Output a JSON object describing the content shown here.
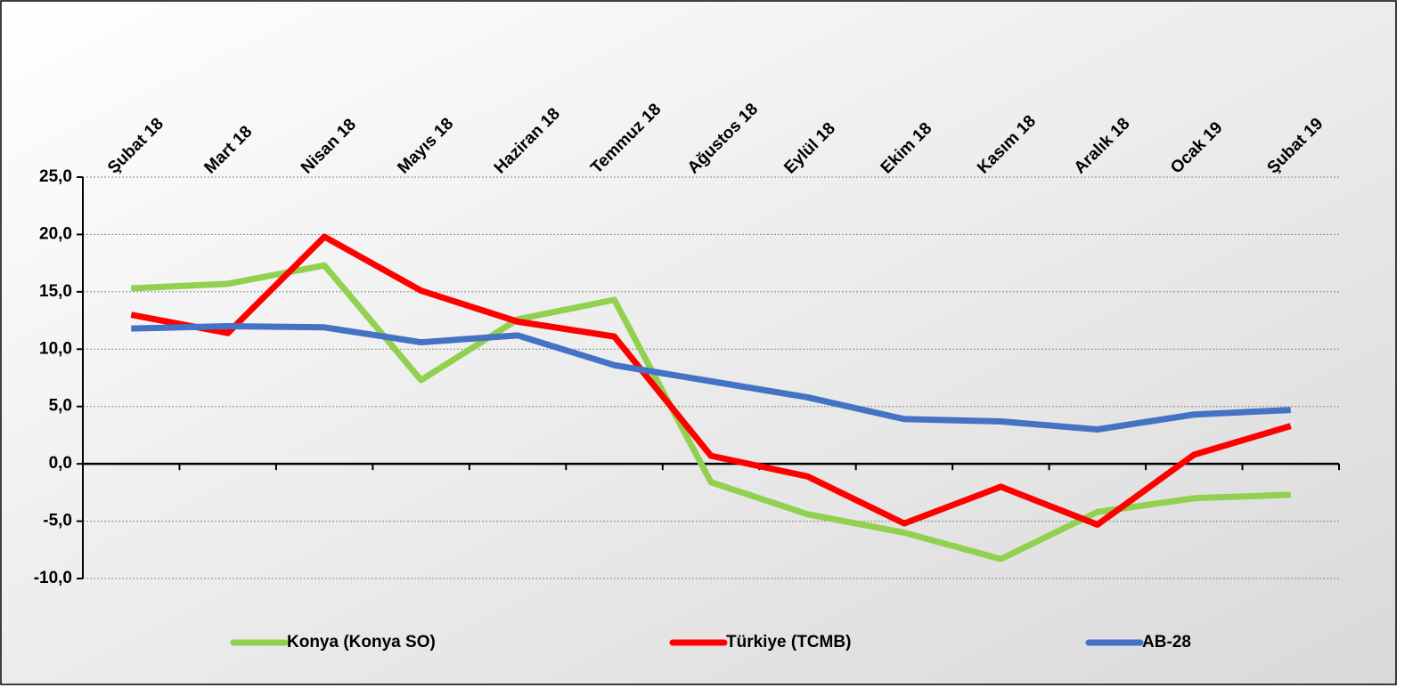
{
  "chart_data": {
    "type": "line",
    "categories": [
      "Şubat 18",
      "Mart 18",
      "Nisan 18",
      "Mayıs 18",
      "Haziran 18",
      "Temmuz 18",
      "Ağustos 18",
      "Eylül 18",
      "Ekim 18",
      "Kasım 18",
      "Aralık 18",
      "Ocak 19",
      "Şubat 19"
    ],
    "series": [
      {
        "name": "Konya (Konya SO)",
        "color": "#92d050",
        "values": [
          15.3,
          15.7,
          17.3,
          7.3,
          12.6,
          14.3,
          -1.6,
          -4.4,
          -6.0,
          -8.3,
          -4.2,
          -3.0,
          -2.7
        ]
      },
      {
        "name": "Türkiye (TCMB)",
        "color": "#ff0000",
        "values": [
          13.0,
          11.4,
          19.8,
          15.1,
          12.4,
          11.1,
          0.7,
          -1.1,
          -5.2,
          -2.0,
          -5.3,
          0.8,
          3.3
        ]
      },
      {
        "name": "AB-28",
        "color": "#4472c4",
        "values": [
          11.8,
          12.0,
          11.9,
          10.6,
          11.2,
          8.6,
          7.2,
          5.8,
          3.9,
          3.7,
          3.0,
          4.3,
          4.7
        ]
      }
    ],
    "ylim": [
      -10,
      25
    ],
    "yticks": [
      {
        "value": -10,
        "label": "-10,0"
      },
      {
        "value": -5,
        "label": "-5,0"
      },
      {
        "value": 0,
        "label": "0,0"
      },
      {
        "value": 5,
        "label": "5,0"
      },
      {
        "value": 10,
        "label": "10,0"
      },
      {
        "value": 15,
        "label": "15,0"
      },
      {
        "value": 20,
        "label": "20,0"
      },
      {
        "value": 25,
        "label": "25,0"
      }
    ],
    "grid": true,
    "legend": "bottom"
  }
}
